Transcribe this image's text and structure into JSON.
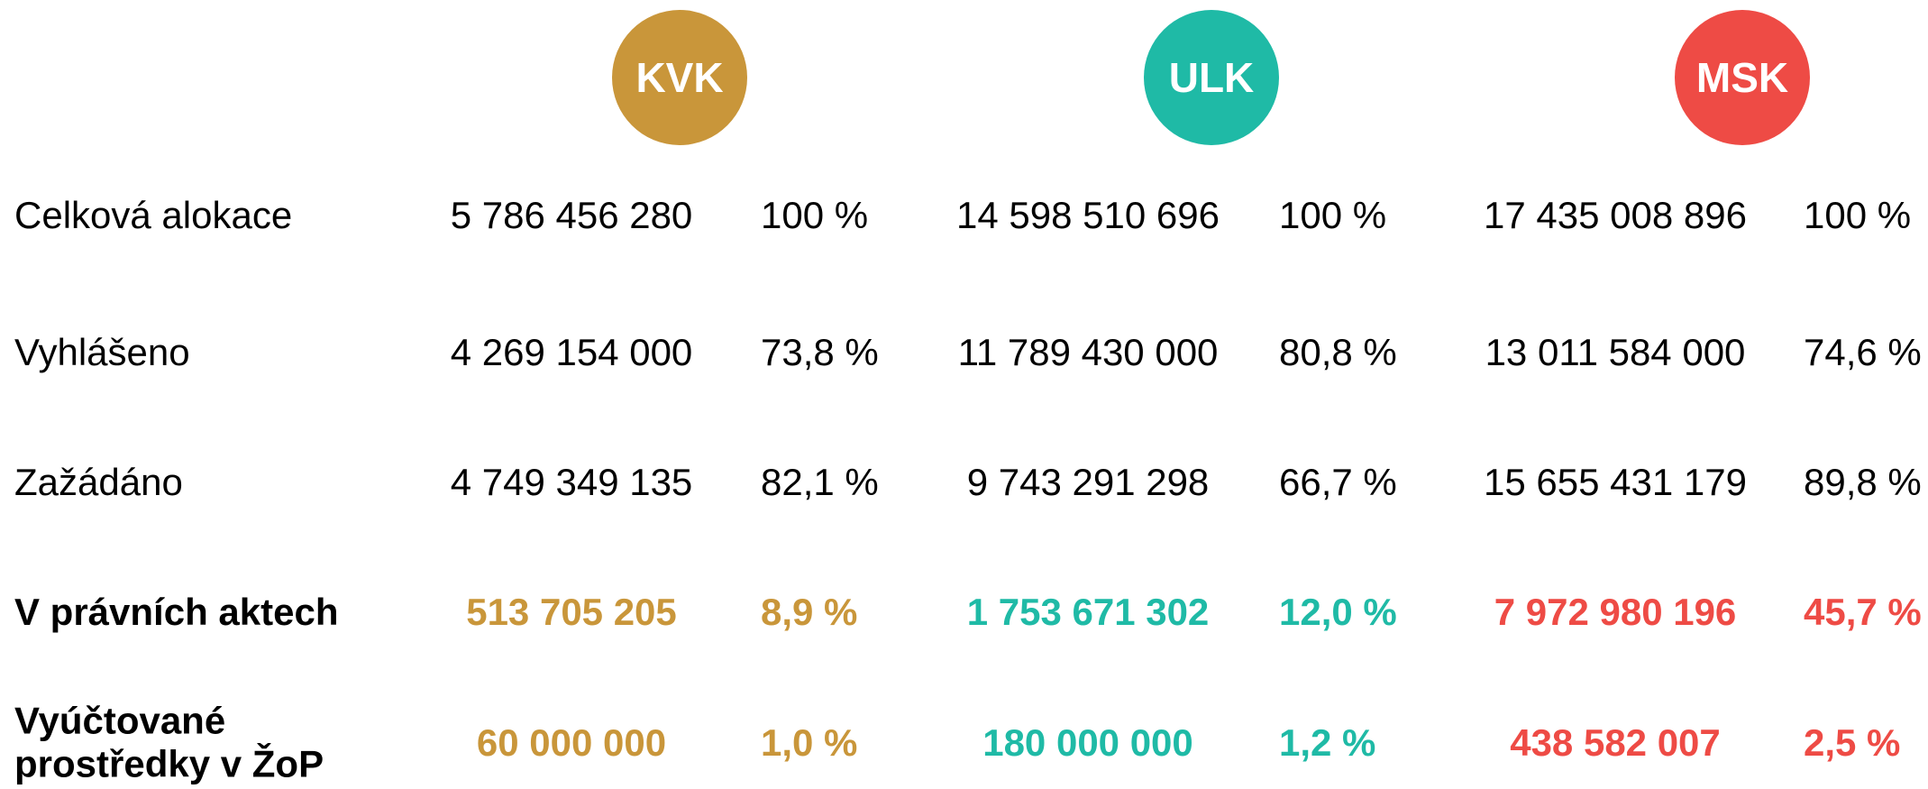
{
  "header": {
    "regions": [
      {
        "name": "KVK",
        "color": "#C9963A"
      },
      {
        "name": "ULK",
        "color": "#1FBAA6"
      },
      {
        "name": "MSK",
        "color": "#EE4B45"
      }
    ]
  },
  "table": {
    "rows": [
      {
        "label": "Celková alokace",
        "bold": false,
        "cells": [
          [
            "5 786 456 280",
            "100 %"
          ],
          [
            "14 598 510 696",
            "100 %"
          ],
          [
            "17 435 008 896",
            "100 %"
          ]
        ]
      },
      {
        "label": "Vyhlášeno",
        "bold": false,
        "cells": [
          [
            "4 269 154 000",
            "73,8 %"
          ],
          [
            "11 789 430 000",
            "80,8 %"
          ],
          [
            "13 011 584 000",
            "74,6 %"
          ]
        ]
      },
      {
        "label": "Zažádáno",
        "bold": false,
        "cells": [
          [
            "4 749 349 135",
            "82,1 %"
          ],
          [
            "9 743 291 298",
            "66,7 %"
          ],
          [
            "15 655 431 179",
            "89,8 %"
          ]
        ]
      },
      {
        "label": "V právních aktech",
        "bold": true,
        "cells": [
          [
            "513 705 205",
            "8,9 %"
          ],
          [
            "1 753 671 302",
            "12,0 %"
          ],
          [
            "7 972 980 196",
            "45,7 %"
          ]
        ]
      },
      {
        "label": "Vyúčtované prostředky v ŽoP",
        "bold": true,
        "cells": [
          [
            "60 000 000",
            "1,0 %"
          ],
          [
            "180 000 000",
            "1,2 %"
          ],
          [
            "438 582 007",
            "2,5 %"
          ]
        ]
      }
    ]
  }
}
